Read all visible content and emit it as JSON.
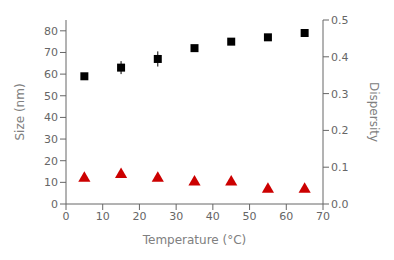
{
  "chart_data": {
    "type": "scatter",
    "xlabel": "Temperature (°C)",
    "ylabel": "Size (nm)",
    "y2label": "Dispersity",
    "x": [
      5,
      15,
      25,
      35,
      45,
      55,
      65
    ],
    "series": [
      {
        "values": [
          59,
          63,
          67,
          72,
          75,
          77,
          79
        ],
        "error": [
          1.5,
          3.0,
          3.5,
          1.0,
          1.5,
          1.0,
          1.5
        ],
        "color": "black",
        "marker": "square"
      },
      {
        "values": [
          0.07,
          0.08,
          0.07,
          0.06,
          0.06,
          0.04,
          0.04
        ],
        "axis": "y2",
        "color": "#cc0000",
        "marker": "triangle"
      }
    ],
    "xlim": [
      0,
      70
    ],
    "xticks": [
      0,
      10,
      20,
      30,
      40,
      50,
      60,
      70
    ],
    "ylim": [
      0,
      85
    ],
    "yticks": [
      0,
      10,
      20,
      30,
      40,
      50,
      60,
      70,
      80
    ],
    "y2lim": [
      0.0,
      0.5
    ],
    "y2ticks": [
      {
        "value": 0.0,
        "label": "0.0"
      },
      0.1,
      0.2,
      0.3,
      0.4,
      0.5
    ],
    "grid": false
  }
}
